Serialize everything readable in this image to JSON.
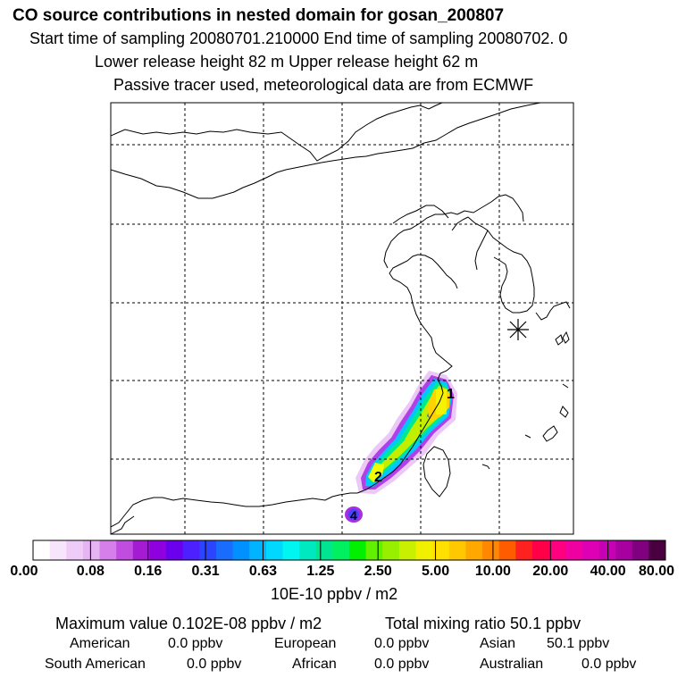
{
  "header": {
    "title": "CO  source contributions in nested domain for gosan_200807",
    "line2": "Start time of sampling 20080701.210000     End time of sampling 20080702.     0",
    "line3": "Lower release height   82 m          Upper release height   62 m",
    "line4": "Passive tracer used, meteorological data are from ECMWF"
  },
  "map": {
    "markers": [
      "1",
      "2",
      "4"
    ],
    "receptor_icon": "receptor-asterisk-icon"
  },
  "colorbar": {
    "colors": [
      "#ffffff",
      "#f7e6fb",
      "#efccf7",
      "#e6b3f3",
      "#d67fea",
      "#c04de0",
      "#a51bd3",
      "#8f00e0",
      "#6a00ee",
      "#4d20ff",
      "#2c44ff",
      "#1a6cff",
      "#0090ff",
      "#00b4ff",
      "#00d8ff",
      "#00f6f0",
      "#00e8c0",
      "#00e690",
      "#00f060",
      "#00f000",
      "#60f000",
      "#98f000",
      "#c8f000",
      "#f0f000",
      "#ffe000",
      "#ffc800",
      "#ffa800",
      "#ff8800",
      "#ff5c00",
      "#ff2020",
      "#ff0048",
      "#ff0080",
      "#f000a0",
      "#e000b4",
      "#c800b4",
      "#a800a0",
      "#800080",
      "#4a0040"
    ],
    "labels": [
      "0.00",
      "0.08",
      "0.16",
      "0.31",
      "0.63",
      "1.25",
      "2.50",
      "5.00",
      "10.00",
      "20.00",
      "40.00",
      "80.00"
    ],
    "units": "10E-10 ppbv / m2"
  },
  "stats": {
    "max_text": "Maximum value  0.102E-08 ppbv / m2",
    "total_text": "Total mixing ratio       50.1 ppbv",
    "american_label": "American",
    "american_value": "0.0 ppbv",
    "european_label": "European",
    "european_value": "0.0 ppbv",
    "asian_label": "Asian",
    "asian_value": "50.1 ppbv",
    "south_american_label": "South American",
    "south_american_value": "0.0 ppbv",
    "african_label": "African",
    "african_value": "0.0 ppbv",
    "australian_label": "Australian",
    "australian_value": "0.0 ppbv"
  }
}
